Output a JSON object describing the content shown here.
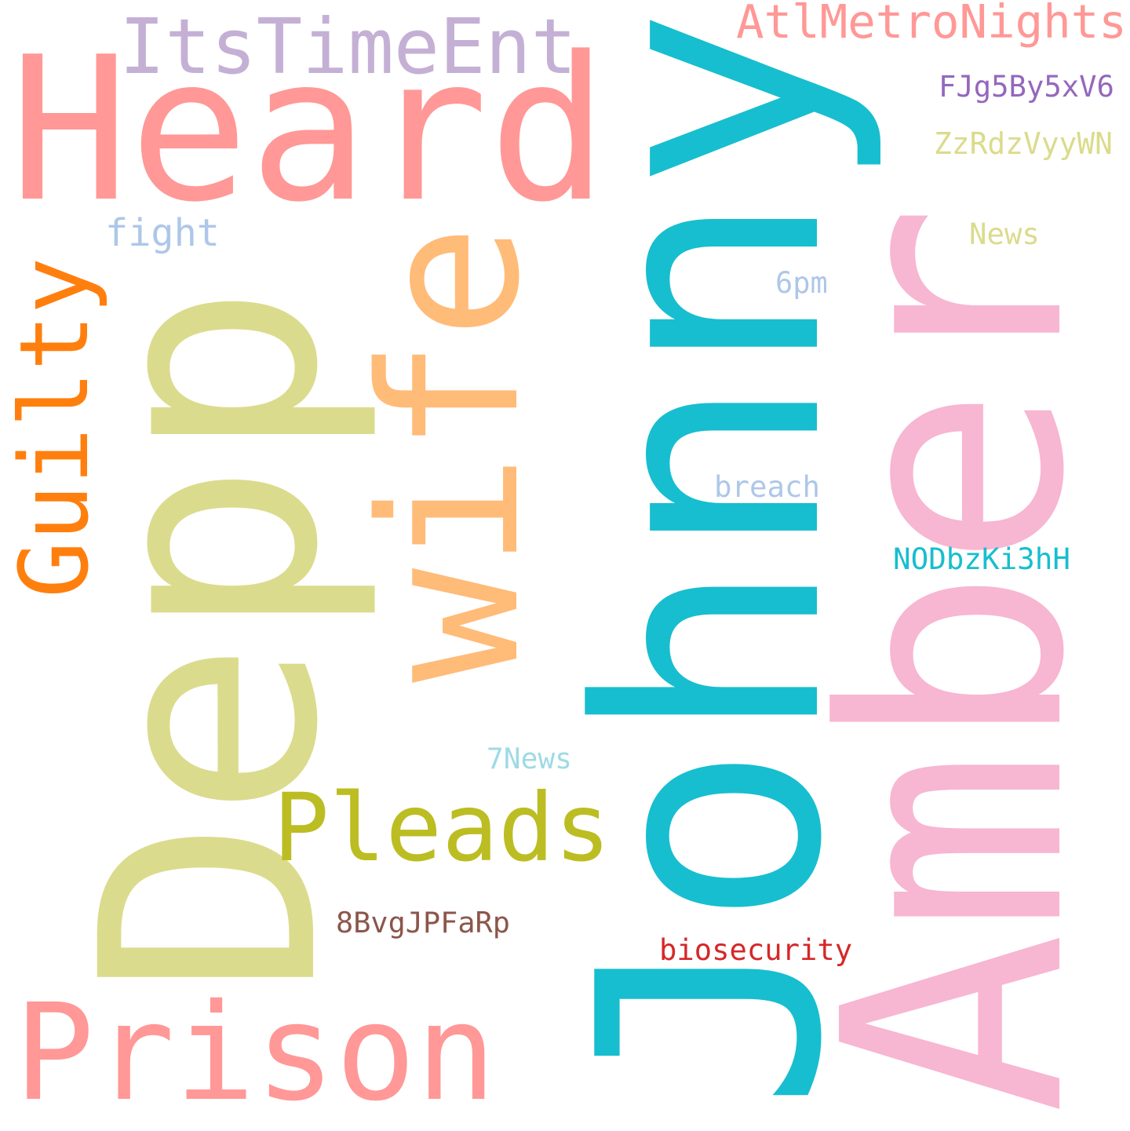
{
  "word_cloud": {
    "background": "#ffffff",
    "words": [
      {
        "text": "Johnny",
        "color": "#17becf",
        "orientation": "vertical"
      },
      {
        "text": "Depp",
        "color": "#dbdb8d",
        "orientation": "vertical"
      },
      {
        "text": "Amber",
        "color": "#f7b6d2",
        "orientation": "vertical"
      },
      {
        "text": "Heard",
        "color": "#ff9896",
        "orientation": "horizontal"
      },
      {
        "text": "wife",
        "color": "#ffbb78",
        "orientation": "vertical"
      },
      {
        "text": "Prison",
        "color": "#ff9896",
        "orientation": "horizontal"
      },
      {
        "text": "Guilty",
        "color": "#ff7f0e",
        "orientation": "vertical"
      },
      {
        "text": "Pleads",
        "color": "#bcbd22",
        "orientation": "horizontal"
      },
      {
        "text": "ItsTimeEnt",
        "color": "#c5b0d5",
        "orientation": "horizontal"
      },
      {
        "text": "AtlMetroNights",
        "color": "#ff9896",
        "orientation": "horizontal"
      },
      {
        "text": "FJg5By5xV6",
        "color": "#9467bd",
        "orientation": "horizontal"
      },
      {
        "text": "ZzRdzVyyWN",
        "color": "#dbdb8d",
        "orientation": "horizontal"
      },
      {
        "text": "News",
        "color": "#dbdb8d",
        "orientation": "horizontal"
      },
      {
        "text": "fight",
        "color": "#aec7e8",
        "orientation": "horizontal"
      },
      {
        "text": "6pm",
        "color": "#aec7e8",
        "orientation": "horizontal"
      },
      {
        "text": "breach",
        "color": "#aec7e8",
        "orientation": "horizontal"
      },
      {
        "text": "NODbzKi3hH",
        "color": "#17becf",
        "orientation": "horizontal"
      },
      {
        "text": "7News",
        "color": "#9edae5",
        "orientation": "horizontal"
      },
      {
        "text": "8BvgJPFaRp",
        "color": "#8c564b",
        "orientation": "horizontal"
      },
      {
        "text": "biosecurity",
        "color": "#d62728",
        "orientation": "horizontal"
      }
    ]
  }
}
